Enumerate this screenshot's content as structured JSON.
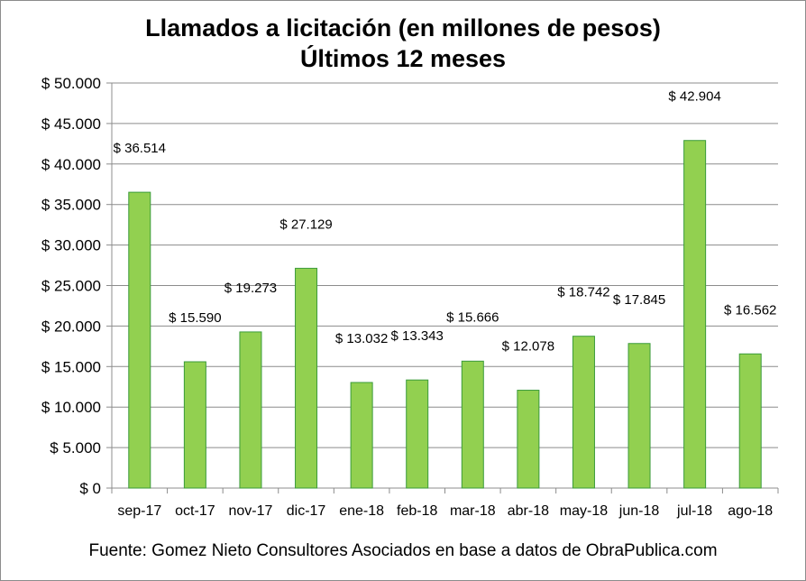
{
  "chart_data": {
    "type": "bar",
    "title": "Llamados a licitación (en millones de pesos)",
    "subtitle": "Últimos 12 meses",
    "categories": [
      "sep-17",
      "oct-17",
      "nov-17",
      "dic-17",
      "ene-18",
      "feb-18",
      "mar-18",
      "abr-18",
      "may-18",
      "jun-18",
      "jul-18",
      "ago-18"
    ],
    "values": [
      36514,
      15590,
      19273,
      27129,
      13032,
      13343,
      15666,
      12078,
      18742,
      17845,
      42904,
      16562
    ],
    "data_labels": [
      "$ 36.514",
      "$ 15.590",
      "$ 19.273",
      "$ 27.129",
      "$ 13.032",
      "$ 13.343",
      "$ 15.666",
      "$ 12.078",
      "$ 18.742",
      "$ 17.845",
      "$ 42.904",
      "$ 16.562"
    ],
    "y_tick_labels": [
      "$ 0",
      "$ 5.000",
      "$ 10.000",
      "$ 15.000",
      "$ 20.000",
      "$ 25.000",
      "$ 30.000",
      "$ 35.000",
      "$ 40.000",
      "$ 45.000",
      "$ 50.000"
    ],
    "ylim": [
      0,
      50000
    ],
    "y_tick_step": 5000,
    "xlabel": "",
    "ylabel": "",
    "grid": true,
    "legend": false,
    "colors": {
      "bar_fill": "#92d050",
      "bar_stroke": "#3a9b3a",
      "grid": "#8c8c8c",
      "axis": "#8c8c8c"
    }
  },
  "footer": "Fuente: Gomez Nieto Consultores Asociados en base a datos de ObraPublica.com"
}
